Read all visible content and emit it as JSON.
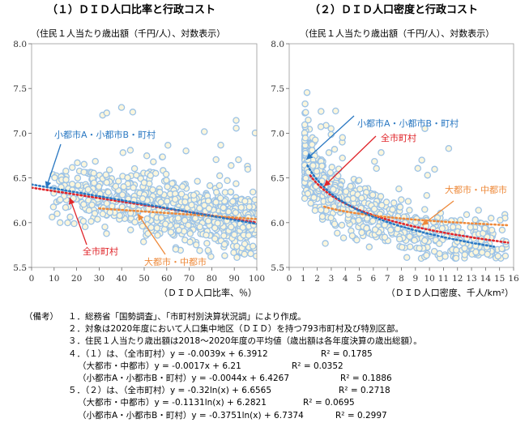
{
  "titles": {
    "left": "（１）ＤＩＤ人口比率と行政コスト",
    "right": "（２）ＤＩＤ人口密度と行政コスト"
  },
  "chart_data": [
    {
      "type": "scatter",
      "title": "（１）ＤＩＤ人口比率と行政コスト",
      "subtitle": "（住民１人当たり歳出額（千円/人）、対数表示）",
      "xlabel": "（ＤＩＤ人口比率、％）",
      "xlim": [
        0,
        100
      ],
      "ylim": [
        5.5,
        8.0
      ],
      "xticks": [
        "0",
        "10",
        "20",
        "30",
        "40",
        "50",
        "60",
        "70",
        "80",
        "90",
        "100"
      ],
      "yticks": [
        "5.5",
        "6.0",
        "6.5",
        "7.0",
        "7.5",
        "8.0"
      ],
      "grid": false,
      "scatter_color": "#9dc3e6",
      "trendlines": [
        {
          "name": "全市町村",
          "color": "#e0262b",
          "slope": -0.0039,
          "intercept": 6.3912,
          "x": [
            0,
            100
          ]
        },
        {
          "name": "大都市・中都市",
          "color": "#ee8a3b",
          "slope": -0.0017,
          "intercept": 6.21,
          "x": [
            30,
            100
          ]
        },
        {
          "name": "小都市A・小都市B・町村",
          "color": "#2a78c2",
          "slope": -0.0044,
          "intercept": 6.4267,
          "x": [
            0,
            100
          ]
        }
      ],
      "annotations": [
        {
          "text": "小都市A・小都市B・町村",
          "color": "#2a78c2"
        },
        {
          "text": "全市町村",
          "color": "#e0262b"
        },
        {
          "text": "大都市・中都市",
          "color": "#ee8a3b"
        }
      ]
    },
    {
      "type": "scatter",
      "title": "（２）ＤＩＤ人口密度と行政コスト",
      "subtitle": "（住民１人当たり歳出額（千円/人）、対数表示）",
      "xlabel": "（ＤＩＤ人口密度、千人/km²）",
      "xlim": [
        0,
        16
      ],
      "ylim": [
        5.5,
        8.0
      ],
      "xticks": [
        "0",
        "1",
        "2",
        "3",
        "4",
        "5",
        "6",
        "7",
        "8",
        "9",
        "10",
        "11",
        "12",
        "13",
        "14",
        "15",
        "16"
      ],
      "yticks": [
        "5.5",
        "6.0",
        "6.5",
        "7.0",
        "7.5",
        "8.0"
      ],
      "grid": false,
      "scatter_color": "#9dc3e6",
      "trendlines": [
        {
          "name": "全市町村",
          "color": "#e0262b",
          "a": -0.32,
          "b": 6.6565,
          "form": "log",
          "x": [
            1.5,
            15.6
          ]
        },
        {
          "name": "大都市・中都市",
          "color": "#ee8a3b",
          "a": -0.1131,
          "b": 6.2821,
          "form": "log",
          "x": [
            2.5,
            15.6
          ]
        },
        {
          "name": "小都市A・小都市B・町村",
          "color": "#2a78c2",
          "a": -0.3751,
          "b": 6.7374,
          "form": "log",
          "x": [
            1.3,
            14.6
          ]
        }
      ],
      "annotations": [
        {
          "text": "小都市A・小都市B・町村",
          "color": "#2a78c2"
        },
        {
          "text": "全市町村",
          "color": "#e0262b"
        },
        {
          "text": "大都市・中都市",
          "color": "#ee8a3b"
        }
      ]
    }
  ],
  "notes": [
    {
      "label": "（備考）",
      "text": "１．総務省「国勢調査」、「市町村別決算状況調」により作成。"
    },
    {
      "label": "",
      "text": "２．対象は2020年度において人口集中地区（ＤＩＤ）を持つ793市町村及び特別区部。"
    },
    {
      "label": "",
      "text": "３．住民１人当たり歳出額は2018〜2020年度の平均値（歳出額は各年度決算の歳出総額）。"
    },
    {
      "label": "",
      "text": "４．（１）は、（全市町村）y = -0.0039x + 6.3912",
      "r2": "R² = 0.1785"
    },
    {
      "label": "",
      "text": "（大都市・中都市）y = -0.0017x + 6.21",
      "r2": "R² = 0.0352"
    },
    {
      "label": "",
      "text": "（小都市A・小都市B・町村）y = -0.0044x + 6.4267",
      "r2": "R² = 0.1886"
    },
    {
      "label": "",
      "text": "５．（２）は、（全市町村）y = -0.32ln(x) + 6.6565",
      "r2": "R² = 0.2718"
    },
    {
      "label": "",
      "text": "（大都市・中都市）y = -0.1131ln(x) + 6.2821",
      "r2": "R² = 0.0695"
    },
    {
      "label": "",
      "text": "（小都市A・小都市B・町村）y = -0.3751ln(x) + 6.7374",
      "r2": "R² = 0.2997"
    }
  ]
}
